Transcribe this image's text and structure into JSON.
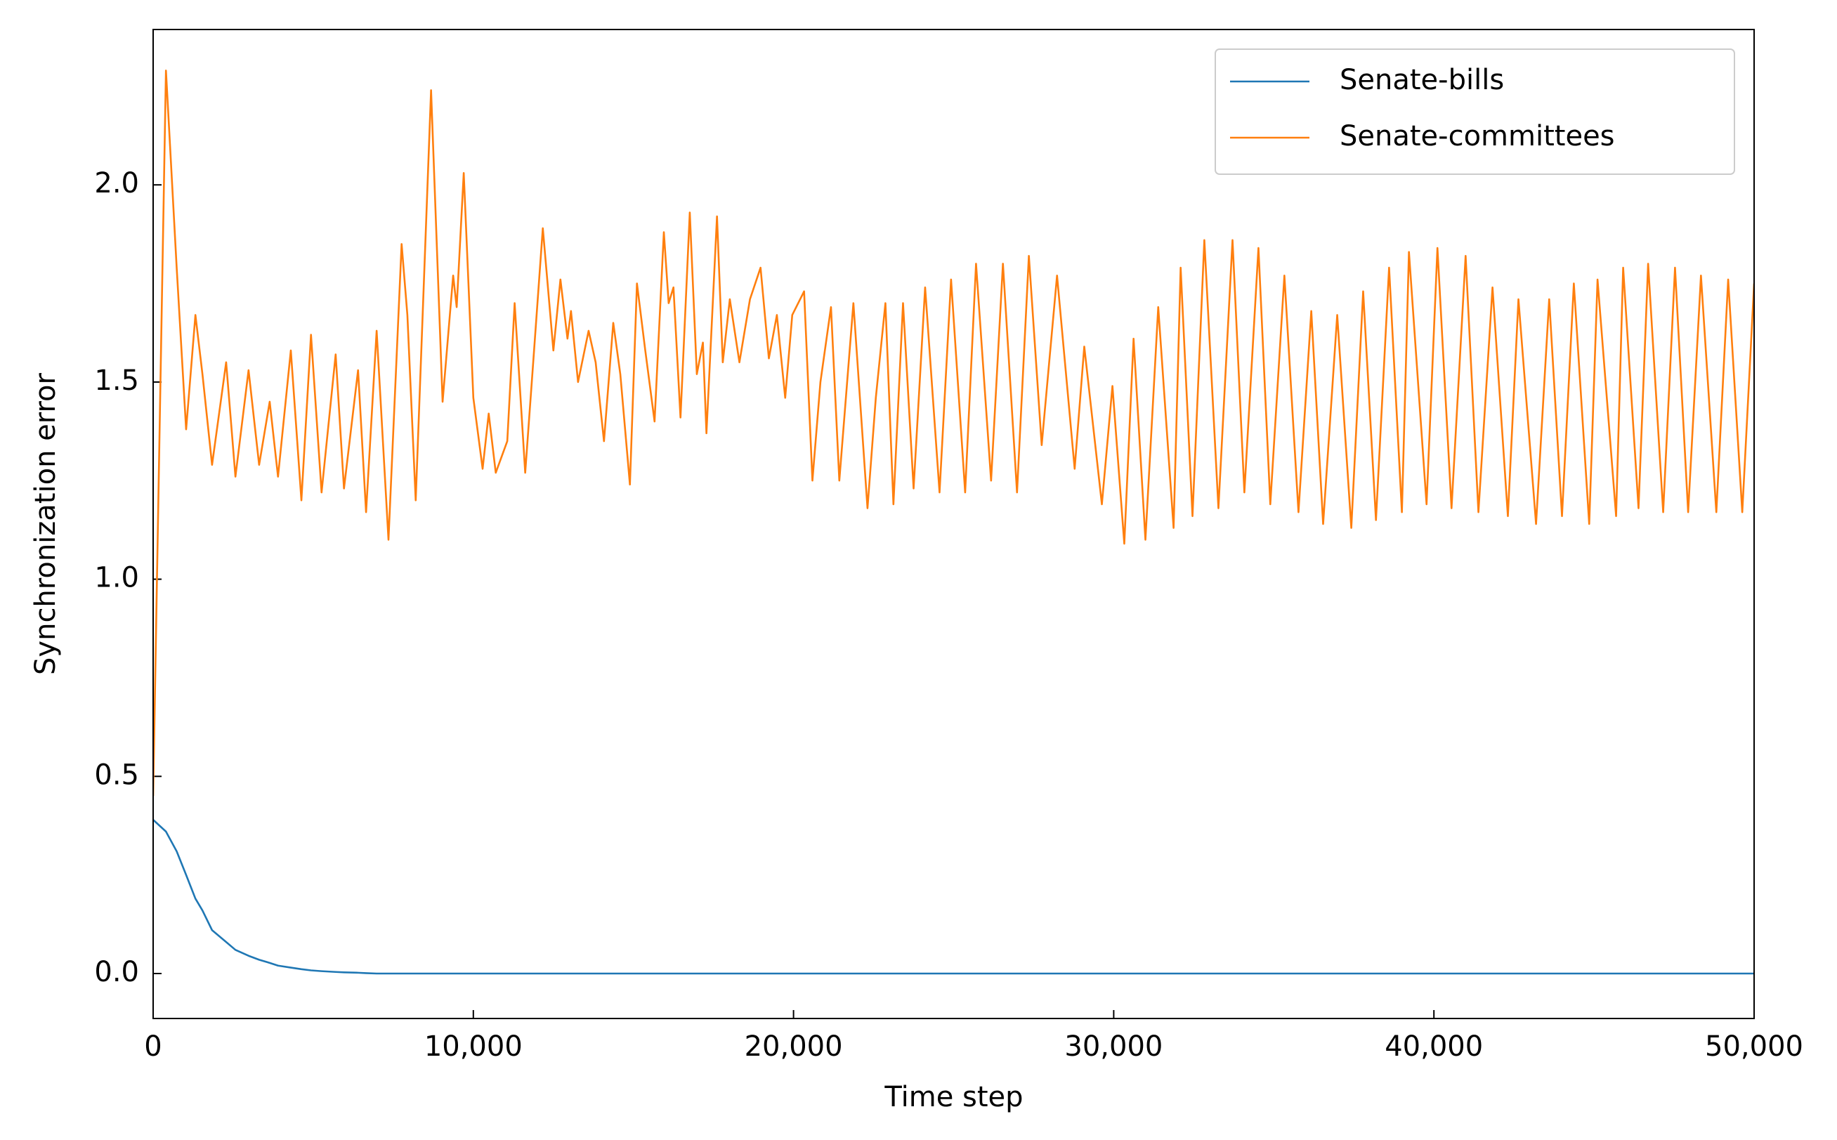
{
  "chart_data": {
    "type": "line",
    "xlabel": "Time step",
    "ylabel": "Synchronization error",
    "x": [
      0,
      400,
      735,
      1030,
      1320,
      1540,
      1840,
      2280,
      2570,
      2980,
      3310,
      3640,
      3900,
      4300,
      4630,
      4930,
      5260,
      5700,
      5960,
      6400,
      6650,
      6980,
      7350,
      7760,
      7940,
      8200,
      8680,
      9040,
      9370,
      9480,
      9700,
      10000,
      10290,
      10480,
      10700,
      11060,
      11290,
      11620,
      11870,
      12170,
      12500,
      12720,
      12940,
      13050,
      13270,
      13600,
      13820,
      14080,
      14370,
      14590,
      14890,
      15110,
      15370,
      15660,
      15950,
      16100,
      16250,
      16470,
      16760,
      16980,
      17170,
      17280,
      17610,
      17790,
      18010,
      18310,
      18640,
      18970,
      19230,
      19480,
      19740,
      19960,
      20330,
      20590,
      20840,
      21170,
      21430,
      21870,
      22310,
      22570,
      22870,
      23120,
      23420,
      23750,
      24110,
      24560,
      24920,
      25360,
      25700,
      26170,
      26540,
      26980,
      27350,
      27750,
      28230,
      28780,
      29080,
      29630,
      29960,
      30330,
      30620,
      30990,
      31390,
      31870,
      32090,
      32460,
      32830,
      33270,
      33710,
      34080,
      34520,
      34890,
      35330,
      35770,
      36170,
      36540,
      36980,
      37420,
      37790,
      38190,
      38600,
      39000,
      39220,
      39770,
      40110,
      40550,
      40990,
      41390,
      41830,
      42310,
      42640,
      43190,
      43600,
      44000,
      44370,
      44850,
      45110,
      45690,
      45910,
      46390,
      46690,
      47160,
      47530,
      47940,
      48340,
      48820,
      49190,
      49630,
      50000
    ],
    "series": [
      {
        "name": "Senate-bills",
        "color": "#1f77b4",
        "values": [
          0.39,
          0.36,
          0.31,
          0.25,
          0.19,
          0.16,
          0.11,
          0.08,
          0.06,
          0.045,
          0.035,
          0.027,
          0.02,
          0.015,
          0.011,
          0.008,
          0.006,
          0.004,
          0.003,
          0.002,
          0.001,
          0,
          0,
          0,
          0,
          0,
          0,
          0,
          0,
          0,
          0,
          0,
          0,
          0,
          0,
          0,
          0,
          0,
          0,
          0,
          0,
          0,
          0,
          0,
          0,
          0,
          0,
          0,
          0,
          0,
          0,
          0,
          0,
          0,
          0,
          0,
          0,
          0,
          0,
          0,
          0,
          0,
          0,
          0,
          0,
          0,
          0,
          0,
          0,
          0,
          0,
          0,
          0,
          0,
          0,
          0,
          0,
          0,
          0,
          0,
          0,
          0,
          0,
          0,
          0,
          0,
          0,
          0,
          0,
          0,
          0,
          0,
          0,
          0,
          0,
          0,
          0,
          0,
          0,
          0,
          0,
          0,
          0,
          0,
          0,
          0,
          0,
          0,
          0,
          0,
          0,
          0,
          0,
          0,
          0,
          0,
          0,
          0,
          0,
          0,
          0,
          0,
          0,
          0,
          0,
          0,
          0,
          0,
          0,
          0,
          0,
          0,
          0,
          0,
          0,
          0,
          0,
          0,
          0,
          0,
          0,
          0,
          0,
          0,
          0,
          0,
          0,
          0,
          0
        ]
      },
      {
        "name": "Senate-committees",
        "color": "#ff7f0e",
        "values": [
          0.45,
          2.29,
          1.79,
          1.38,
          1.67,
          1.52,
          1.29,
          1.55,
          1.26,
          1.53,
          1.29,
          1.45,
          1.26,
          1.58,
          1.2,
          1.62,
          1.22,
          1.57,
          1.23,
          1.53,
          1.17,
          1.63,
          1.1,
          1.85,
          1.67,
          1.2,
          2.24,
          1.45,
          1.77,
          1.69,
          2.03,
          1.46,
          1.28,
          1.42,
          1.27,
          1.35,
          1.7,
          1.27,
          1.55,
          1.89,
          1.58,
          1.76,
          1.61,
          1.68,
          1.5,
          1.63,
          1.55,
          1.35,
          1.65,
          1.52,
          1.24,
          1.75,
          1.58,
          1.4,
          1.88,
          1.7,
          1.74,
          1.41,
          1.93,
          1.52,
          1.6,
          1.37,
          1.92,
          1.55,
          1.71,
          1.55,
          1.71,
          1.79,
          1.56,
          1.67,
          1.46,
          1.67,
          1.73,
          1.25,
          1.5,
          1.69,
          1.25,
          1.7,
          1.18,
          1.46,
          1.7,
          1.19,
          1.7,
          1.23,
          1.74,
          1.22,
          1.76,
          1.22,
          1.8,
          1.25,
          1.8,
          1.22,
          1.82,
          1.34,
          1.77,
          1.28,
          1.59,
          1.19,
          1.49,
          1.09,
          1.61,
          1.1,
          1.69,
          1.13,
          1.79,
          1.16,
          1.86,
          1.18,
          1.86,
          1.22,
          1.84,
          1.19,
          1.77,
          1.17,
          1.68,
          1.14,
          1.67,
          1.13,
          1.73,
          1.15,
          1.79,
          1.17,
          1.83,
          1.19,
          1.84,
          1.18,
          1.82,
          1.17,
          1.74,
          1.16,
          1.71,
          1.14,
          1.71,
          1.16,
          1.75,
          1.14,
          1.76,
          1.16,
          1.79,
          1.18,
          1.8,
          1.17,
          1.79,
          1.17,
          1.77,
          1.17,
          1.76,
          1.17,
          1.75
        ]
      }
    ],
    "xlim": [
      0,
      50000
    ],
    "xticks": [
      0,
      {
        "value": 10000,
        "label": "10,000"
      },
      {
        "value": 20000,
        "label": "20,000"
      },
      {
        "value": 30000,
        "label": "30,000"
      },
      {
        "value": 40000,
        "label": "40,000"
      },
      {
        "value": 50000,
        "label": "50,000"
      }
    ],
    "ylim": [
      -0.114,
      2.394
    ],
    "yticks": [
      {
        "value": 0,
        "label": "0.0"
      },
      0.5,
      {
        "value": 1,
        "label": "1.0"
      },
      1.5,
      {
        "value": 2,
        "label": "2.0"
      }
    ],
    "grid": false,
    "legend": "upper right"
  }
}
